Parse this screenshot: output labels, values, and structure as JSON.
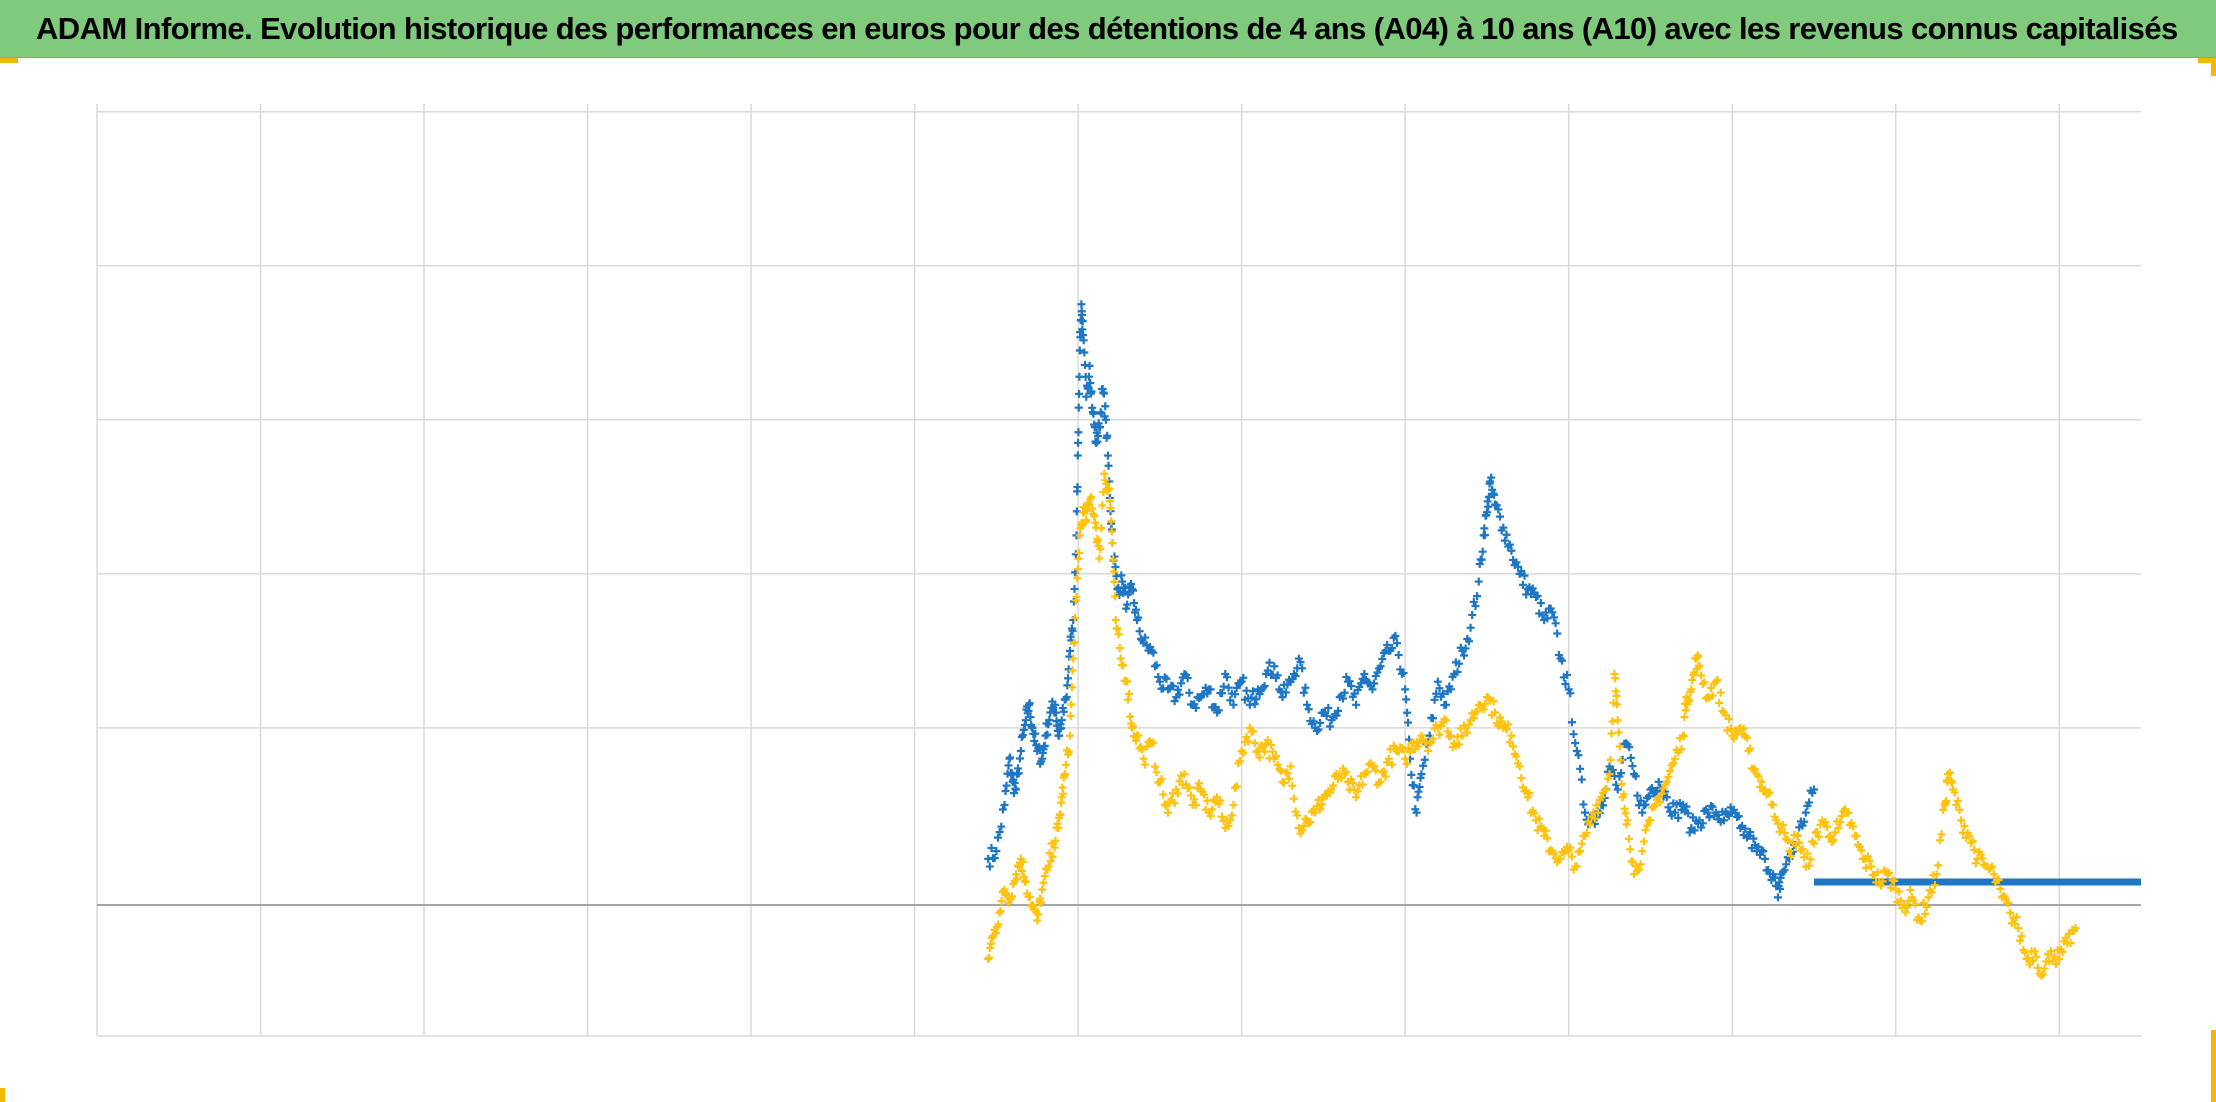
{
  "title": "ADAM Informe. Evolution historique des performances en euros pour des détentions de 4 ans (A04) à 10 ans (A10) avec les revenus connus capitalisés",
  "colors": {
    "title_bar": "#7fca7c",
    "series_blue": "#1f77c4",
    "series_yellow": "#ffc20e",
    "grid": "#d9d9d9",
    "baseline": "#a6a6a6",
    "corner_marks": "#f5b800"
  },
  "chart_data": {
    "type": "scatter",
    "marker": "plus",
    "grid": true,
    "legend": "none",
    "title": "",
    "xlabel": "",
    "ylabel": "",
    "x_tick_labels": [],
    "y_tick_labels": [],
    "xlim": [
      0,
      12.5
    ],
    "ylim": [
      -0.85,
      5.2
    ],
    "x_gridlines": [
      0,
      1,
      2,
      3,
      4,
      5,
      6,
      7,
      8,
      9,
      10,
      11,
      12
    ],
    "y_gridlines": [
      -0.85,
      0,
      1.15,
      2.15,
      3.15,
      4.15,
      5.15
    ],
    "baseline_y": 0,
    "series": [
      {
        "color_key": "series_blue",
        "points": [
          [
            5.45,
            0.3
          ],
          [
            5.5,
            0.35
          ],
          [
            5.55,
            0.65
          ],
          [
            5.58,
            0.95
          ],
          [
            5.6,
            0.8
          ],
          [
            5.62,
            0.75
          ],
          [
            5.65,
            1.0
          ],
          [
            5.68,
            1.2
          ],
          [
            5.7,
            1.3
          ],
          [
            5.72,
            1.15
          ],
          [
            5.75,
            1.0
          ],
          [
            5.78,
            0.95
          ],
          [
            5.8,
            1.1
          ],
          [
            5.83,
            1.25
          ],
          [
            5.86,
            1.3
          ],
          [
            5.88,
            1.1
          ],
          [
            5.9,
            1.2
          ],
          [
            5.93,
            1.35
          ],
          [
            5.95,
            1.65
          ],
          [
            5.97,
            1.85
          ],
          [
            5.99,
            2.4
          ],
          [
            6.0,
            3.0
          ],
          [
            6.01,
            3.6
          ],
          [
            6.02,
            3.9
          ],
          [
            6.03,
            3.7
          ],
          [
            6.05,
            3.3
          ],
          [
            6.07,
            3.5
          ],
          [
            6.09,
            3.2
          ],
          [
            6.11,
            3.0
          ],
          [
            6.13,
            3.1
          ],
          [
            6.15,
            3.35
          ],
          [
            6.17,
            3.15
          ],
          [
            6.19,
            2.75
          ],
          [
            6.21,
            2.35
          ],
          [
            6.24,
            2.05
          ],
          [
            6.27,
            2.1
          ],
          [
            6.3,
            1.95
          ],
          [
            6.33,
            2.05
          ],
          [
            6.36,
            1.85
          ],
          [
            6.4,
            1.7
          ],
          [
            6.45,
            1.65
          ],
          [
            6.5,
            1.45
          ],
          [
            6.55,
            1.4
          ],
          [
            6.6,
            1.35
          ],
          [
            6.65,
            1.5
          ],
          [
            6.7,
            1.3
          ],
          [
            6.75,
            1.35
          ],
          [
            6.8,
            1.4
          ],
          [
            6.85,
            1.25
          ],
          [
            6.9,
            1.5
          ],
          [
            6.95,
            1.3
          ],
          [
            7.0,
            1.45
          ],
          [
            7.05,
            1.3
          ],
          [
            7.1,
            1.4
          ],
          [
            7.15,
            1.5
          ],
          [
            7.2,
            1.55
          ],
          [
            7.25,
            1.35
          ],
          [
            7.3,
            1.45
          ],
          [
            7.35,
            1.6
          ],
          [
            7.4,
            1.3
          ],
          [
            7.45,
            1.15
          ],
          [
            7.5,
            1.25
          ],
          [
            7.55,
            1.2
          ],
          [
            7.6,
            1.35
          ],
          [
            7.65,
            1.45
          ],
          [
            7.7,
            1.3
          ],
          [
            7.75,
            1.5
          ],
          [
            7.8,
            1.4
          ],
          [
            7.85,
            1.55
          ],
          [
            7.9,
            1.65
          ],
          [
            7.95,
            1.7
          ],
          [
            8.0,
            1.4
          ],
          [
            8.03,
            0.95
          ],
          [
            8.07,
            0.6
          ],
          [
            8.1,
            0.85
          ],
          [
            8.15,
            1.1
          ],
          [
            8.2,
            1.45
          ],
          [
            8.25,
            1.3
          ],
          [
            8.3,
            1.5
          ],
          [
            8.35,
            1.65
          ],
          [
            8.4,
            1.8
          ],
          [
            8.45,
            2.1
          ],
          [
            8.48,
            2.4
          ],
          [
            8.5,
            2.55
          ],
          [
            8.52,
            2.75
          ],
          [
            8.55,
            2.6
          ],
          [
            8.6,
            2.45
          ],
          [
            8.65,
            2.3
          ],
          [
            8.7,
            2.15
          ],
          [
            8.75,
            2.05
          ],
          [
            8.8,
            2.0
          ],
          [
            8.85,
            1.85
          ],
          [
            8.9,
            1.9
          ],
          [
            8.95,
            1.6
          ],
          [
            9.0,
            1.4
          ],
          [
            9.05,
            1.0
          ],
          [
            9.1,
            0.6
          ],
          [
            9.15,
            0.55
          ],
          [
            9.2,
            0.65
          ],
          [
            9.25,
            0.9
          ],
          [
            9.3,
            0.75
          ],
          [
            9.35,
            1.05
          ],
          [
            9.4,
            0.85
          ],
          [
            9.45,
            0.6
          ],
          [
            9.5,
            0.75
          ],
          [
            9.55,
            0.8
          ],
          [
            9.6,
            0.7
          ],
          [
            9.65,
            0.6
          ],
          [
            9.7,
            0.65
          ],
          [
            9.75,
            0.5
          ],
          [
            9.8,
            0.55
          ],
          [
            9.85,
            0.6
          ],
          [
            9.9,
            0.6
          ],
          [
            9.95,
            0.55
          ],
          [
            10.0,
            0.6
          ],
          [
            10.05,
            0.5
          ],
          [
            10.1,
            0.45
          ],
          [
            10.15,
            0.35
          ],
          [
            10.2,
            0.3
          ],
          [
            10.25,
            0.2
          ],
          [
            10.28,
            0.05
          ],
          [
            10.3,
            0.2
          ],
          [
            10.35,
            0.3
          ],
          [
            10.4,
            0.45
          ],
          [
            10.45,
            0.6
          ],
          [
            10.5,
            0.75
          ]
        ],
        "flat_segment": {
          "x_start": 10.5,
          "x_end": 12.5,
          "y": 0.15
        }
      },
      {
        "color_key": "series_yellow",
        "points": [
          [
            5.45,
            -0.35
          ],
          [
            5.48,
            -0.2
          ],
          [
            5.52,
            -0.05
          ],
          [
            5.55,
            0.1
          ],
          [
            5.58,
            0.05
          ],
          [
            5.62,
            0.2
          ],
          [
            5.65,
            0.3
          ],
          [
            5.68,
            0.15
          ],
          [
            5.72,
            0.0
          ],
          [
            5.75,
            -0.1
          ],
          [
            5.78,
            0.1
          ],
          [
            5.82,
            0.25
          ],
          [
            5.85,
            0.4
          ],
          [
            5.88,
            0.5
          ],
          [
            5.9,
            0.7
          ],
          [
            5.92,
            0.85
          ],
          [
            5.95,
            1.1
          ],
          [
            5.97,
            1.6
          ],
          [
            5.99,
            2.0
          ],
          [
            6.01,
            2.4
          ],
          [
            6.03,
            2.55
          ],
          [
            6.05,
            2.5
          ],
          [
            6.08,
            2.65
          ],
          [
            6.11,
            2.45
          ],
          [
            6.13,
            2.25
          ],
          [
            6.16,
            2.8
          ],
          [
            6.19,
            2.7
          ],
          [
            6.21,
            2.35
          ],
          [
            6.23,
            1.85
          ],
          [
            6.26,
            1.6
          ],
          [
            6.3,
            1.45
          ],
          [
            6.33,
            1.15
          ],
          [
            6.36,
            1.1
          ],
          [
            6.4,
            0.95
          ],
          [
            6.45,
            1.05
          ],
          [
            6.5,
            0.8
          ],
          [
            6.55,
            0.6
          ],
          [
            6.6,
            0.75
          ],
          [
            6.65,
            0.85
          ],
          [
            6.7,
            0.65
          ],
          [
            6.75,
            0.75
          ],
          [
            6.8,
            0.6
          ],
          [
            6.85,
            0.7
          ],
          [
            6.9,
            0.5
          ],
          [
            6.95,
            0.65
          ],
          [
            7.0,
            1.0
          ],
          [
            7.05,
            1.15
          ],
          [
            7.1,
            1.0
          ],
          [
            7.15,
            1.05
          ],
          [
            7.2,
            0.95
          ],
          [
            7.25,
            0.8
          ],
          [
            7.3,
            0.9
          ],
          [
            7.35,
            0.5
          ],
          [
            7.4,
            0.55
          ],
          [
            7.45,
            0.6
          ],
          [
            7.5,
            0.7
          ],
          [
            7.55,
            0.75
          ],
          [
            7.6,
            0.85
          ],
          [
            7.65,
            0.8
          ],
          [
            7.7,
            0.7
          ],
          [
            7.75,
            0.85
          ],
          [
            7.8,
            0.9
          ],
          [
            7.85,
            0.8
          ],
          [
            7.9,
            0.95
          ],
          [
            7.95,
            1.0
          ],
          [
            8.0,
            0.95
          ],
          [
            8.05,
            1.05
          ],
          [
            8.1,
            1.1
          ],
          [
            8.15,
            1.05
          ],
          [
            8.2,
            1.15
          ],
          [
            8.25,
            1.2
          ],
          [
            8.3,
            1.05
          ],
          [
            8.35,
            1.1
          ],
          [
            8.4,
            1.2
          ],
          [
            8.45,
            1.3
          ],
          [
            8.5,
            1.35
          ],
          [
            8.55,
            1.25
          ],
          [
            8.6,
            1.15
          ],
          [
            8.65,
            1.1
          ],
          [
            8.7,
            0.9
          ],
          [
            8.75,
            0.7
          ],
          [
            8.8,
            0.55
          ],
          [
            8.85,
            0.45
          ],
          [
            8.9,
            0.35
          ],
          [
            8.95,
            0.3
          ],
          [
            9.0,
            0.35
          ],
          [
            9.05,
            0.25
          ],
          [
            9.1,
            0.45
          ],
          [
            9.15,
            0.6
          ],
          [
            9.2,
            0.7
          ],
          [
            9.25,
            0.85
          ],
          [
            9.28,
            1.5
          ],
          [
            9.3,
            1.2
          ],
          [
            9.33,
            0.7
          ],
          [
            9.36,
            0.55
          ],
          [
            9.4,
            0.2
          ],
          [
            9.45,
            0.35
          ],
          [
            9.5,
            0.55
          ],
          [
            9.55,
            0.7
          ],
          [
            9.6,
            0.8
          ],
          [
            9.65,
            0.95
          ],
          [
            9.7,
            1.1
          ],
          [
            9.72,
            1.35
          ],
          [
            9.75,
            1.4
          ],
          [
            9.78,
            1.6
          ],
          [
            9.8,
            1.55
          ],
          [
            9.85,
            1.35
          ],
          [
            9.9,
            1.45
          ],
          [
            9.95,
            1.25
          ],
          [
            10.0,
            1.1
          ],
          [
            10.05,
            1.15
          ],
          [
            10.1,
            1.0
          ],
          [
            10.15,
            0.85
          ],
          [
            10.2,
            0.75
          ],
          [
            10.25,
            0.65
          ],
          [
            10.3,
            0.5
          ],
          [
            10.35,
            0.35
          ],
          [
            10.4,
            0.45
          ],
          [
            10.45,
            0.25
          ],
          [
            10.5,
            0.4
          ],
          [
            10.55,
            0.55
          ],
          [
            10.6,
            0.45
          ],
          [
            10.65,
            0.5
          ],
          [
            10.7,
            0.6
          ],
          [
            10.75,
            0.45
          ],
          [
            10.8,
            0.3
          ],
          [
            10.85,
            0.25
          ],
          [
            10.9,
            0.15
          ],
          [
            10.95,
            0.2
          ],
          [
            11.0,
            0.1
          ],
          [
            11.05,
            0.0
          ],
          [
            11.1,
            0.05
          ],
          [
            11.15,
            -0.1
          ],
          [
            11.2,
            0.05
          ],
          [
            11.25,
            0.2
          ],
          [
            11.3,
            0.65
          ],
          [
            11.32,
            0.85
          ],
          [
            11.35,
            0.75
          ],
          [
            11.4,
            0.55
          ],
          [
            11.45,
            0.45
          ],
          [
            11.5,
            0.3
          ],
          [
            11.55,
            0.25
          ],
          [
            11.6,
            0.2
          ],
          [
            11.65,
            0.05
          ],
          [
            11.7,
            -0.05
          ],
          [
            11.75,
            -0.15
          ],
          [
            11.8,
            -0.35
          ],
          [
            11.85,
            -0.3
          ],
          [
            11.9,
            -0.45
          ],
          [
            11.95,
            -0.3
          ],
          [
            12.0,
            -0.35
          ],
          [
            12.05,
            -0.25
          ],
          [
            12.1,
            -0.15
          ]
        ]
      }
    ]
  }
}
